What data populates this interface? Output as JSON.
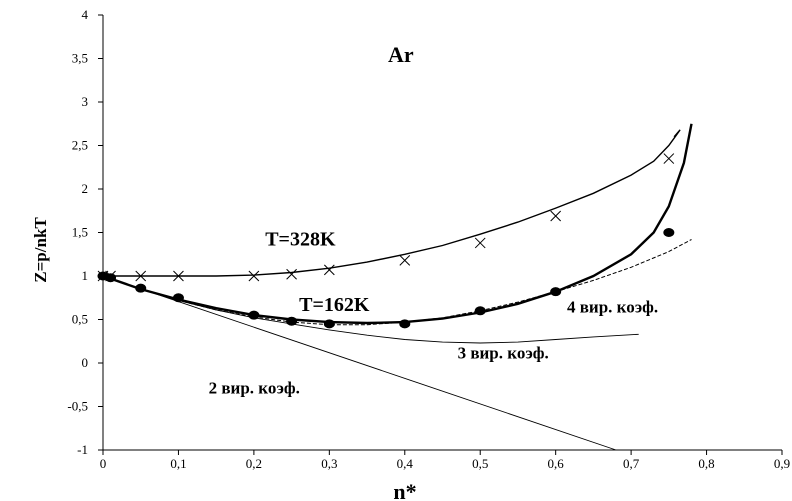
{
  "chart_data": {
    "type": "scatter",
    "title": "Ar",
    "xlabel": "n*",
    "ylabel": "Z=p/nkT",
    "xlim": [
      0,
      0.9
    ],
    "ylim": [
      -1,
      4
    ],
    "x_ticks": [
      "0",
      "0,1",
      "0,2",
      "0,3",
      "0,4",
      "0,5",
      "0,6",
      "0,7",
      "0,8",
      "0,9"
    ],
    "y_ticks": [
      "-1",
      "-0,5",
      "0",
      "0,5",
      "1",
      "1,5",
      "2",
      "2,5",
      "3",
      "3,5",
      "4"
    ],
    "grid": false,
    "legend": "none",
    "annotations": [
      {
        "text": "T=328K",
        "x": 0.215,
        "y": 1.35,
        "size": "large"
      },
      {
        "text": "T=162K",
        "x": 0.26,
        "y": 0.6,
        "size": "large"
      },
      {
        "text": "4 вир. коэф.",
        "x": 0.615,
        "y": 0.58,
        "size": "medium"
      },
      {
        "text": "3 вир. коэф.",
        "x": 0.47,
        "y": 0.05,
        "size": "medium"
      },
      {
        "text": "2 вир. коэф.",
        "x": 0.14,
        "y": -0.35,
        "size": "medium"
      }
    ],
    "series": [
      {
        "kind": "markers",
        "marker": "x",
        "points": [
          [
            0,
            1.0
          ],
          [
            0.01,
            1.0
          ],
          [
            0.05,
            1.0
          ],
          [
            0.1,
            1.0
          ],
          [
            0.2,
            1.0
          ],
          [
            0.25,
            1.02
          ],
          [
            0.3,
            1.07
          ],
          [
            0.4,
            1.18
          ],
          [
            0.5,
            1.38
          ],
          [
            0.6,
            1.69
          ],
          [
            0.75,
            2.35
          ]
        ]
      },
      {
        "kind": "markers",
        "marker": "dot",
        "points": [
          [
            0,
            1.0
          ],
          [
            0.01,
            0.98
          ],
          [
            0.05,
            0.86
          ],
          [
            0.1,
            0.75
          ],
          [
            0.2,
            0.55
          ],
          [
            0.25,
            0.48
          ],
          [
            0.3,
            0.45
          ],
          [
            0.4,
            0.45
          ],
          [
            0.5,
            0.6
          ],
          [
            0.6,
            0.82
          ],
          [
            0.75,
            1.5
          ]
        ]
      },
      {
        "kind": "line",
        "style": "solid",
        "width": 1.4,
        "points": [
          [
            0,
            1.0
          ],
          [
            0.05,
            1.0
          ],
          [
            0.1,
            1.0
          ],
          [
            0.15,
            1.0
          ],
          [
            0.2,
            1.01
          ],
          [
            0.25,
            1.04
          ],
          [
            0.3,
            1.09
          ],
          [
            0.35,
            1.16
          ],
          [
            0.4,
            1.25
          ],
          [
            0.45,
            1.35
          ],
          [
            0.5,
            1.48
          ],
          [
            0.55,
            1.62
          ],
          [
            0.6,
            1.78
          ],
          [
            0.65,
            1.95
          ],
          [
            0.7,
            2.16
          ],
          [
            0.73,
            2.32
          ],
          [
            0.75,
            2.5
          ],
          [
            0.76,
            2.62
          ],
          [
            0.765,
            2.68
          ],
          [
            0.757,
            2.6
          ]
        ]
      },
      {
        "kind": "line",
        "style": "solid",
        "width": 2.4,
        "points": [
          [
            0,
            1.0
          ],
          [
            0.05,
            0.85
          ],
          [
            0.1,
            0.73
          ],
          [
            0.15,
            0.63
          ],
          [
            0.2,
            0.55
          ],
          [
            0.25,
            0.5
          ],
          [
            0.3,
            0.47
          ],
          [
            0.35,
            0.46
          ],
          [
            0.4,
            0.47
          ],
          [
            0.45,
            0.51
          ],
          [
            0.5,
            0.58
          ],
          [
            0.55,
            0.68
          ],
          [
            0.6,
            0.82
          ],
          [
            0.65,
            1.0
          ],
          [
            0.7,
            1.25
          ],
          [
            0.73,
            1.5
          ],
          [
            0.75,
            1.8
          ],
          [
            0.77,
            2.3
          ],
          [
            0.78,
            2.75
          ]
        ]
      },
      {
        "kind": "line",
        "style": "dashed",
        "width": 1.0,
        "points": [
          [
            0,
            1.0
          ],
          [
            0.05,
            0.85
          ],
          [
            0.1,
            0.72
          ],
          [
            0.15,
            0.61
          ],
          [
            0.2,
            0.53
          ],
          [
            0.25,
            0.47
          ],
          [
            0.3,
            0.44
          ],
          [
            0.35,
            0.44
          ],
          [
            0.4,
            0.47
          ],
          [
            0.45,
            0.52
          ],
          [
            0.5,
            0.6
          ],
          [
            0.55,
            0.7
          ],
          [
            0.6,
            0.82
          ],
          [
            0.65,
            0.95
          ],
          [
            0.7,
            1.1
          ],
          [
            0.75,
            1.28
          ],
          [
            0.78,
            1.42
          ]
        ]
      },
      {
        "kind": "line",
        "style": "solid",
        "width": 0.9,
        "points": [
          [
            0,
            1.0
          ],
          [
            0.05,
            0.85
          ],
          [
            0.1,
            0.72
          ],
          [
            0.15,
            0.61
          ],
          [
            0.2,
            0.52
          ],
          [
            0.25,
            0.45
          ],
          [
            0.3,
            0.38
          ],
          [
            0.35,
            0.32
          ],
          [
            0.4,
            0.27
          ],
          [
            0.45,
            0.24
          ],
          [
            0.5,
            0.23
          ],
          [
            0.55,
            0.24
          ],
          [
            0.6,
            0.27
          ],
          [
            0.65,
            0.3
          ],
          [
            0.71,
            0.33
          ]
        ]
      },
      {
        "kind": "line",
        "style": "solid",
        "width": 0.9,
        "points": [
          [
            0,
            1.0
          ],
          [
            0.68,
            -1.0
          ]
        ]
      }
    ]
  }
}
